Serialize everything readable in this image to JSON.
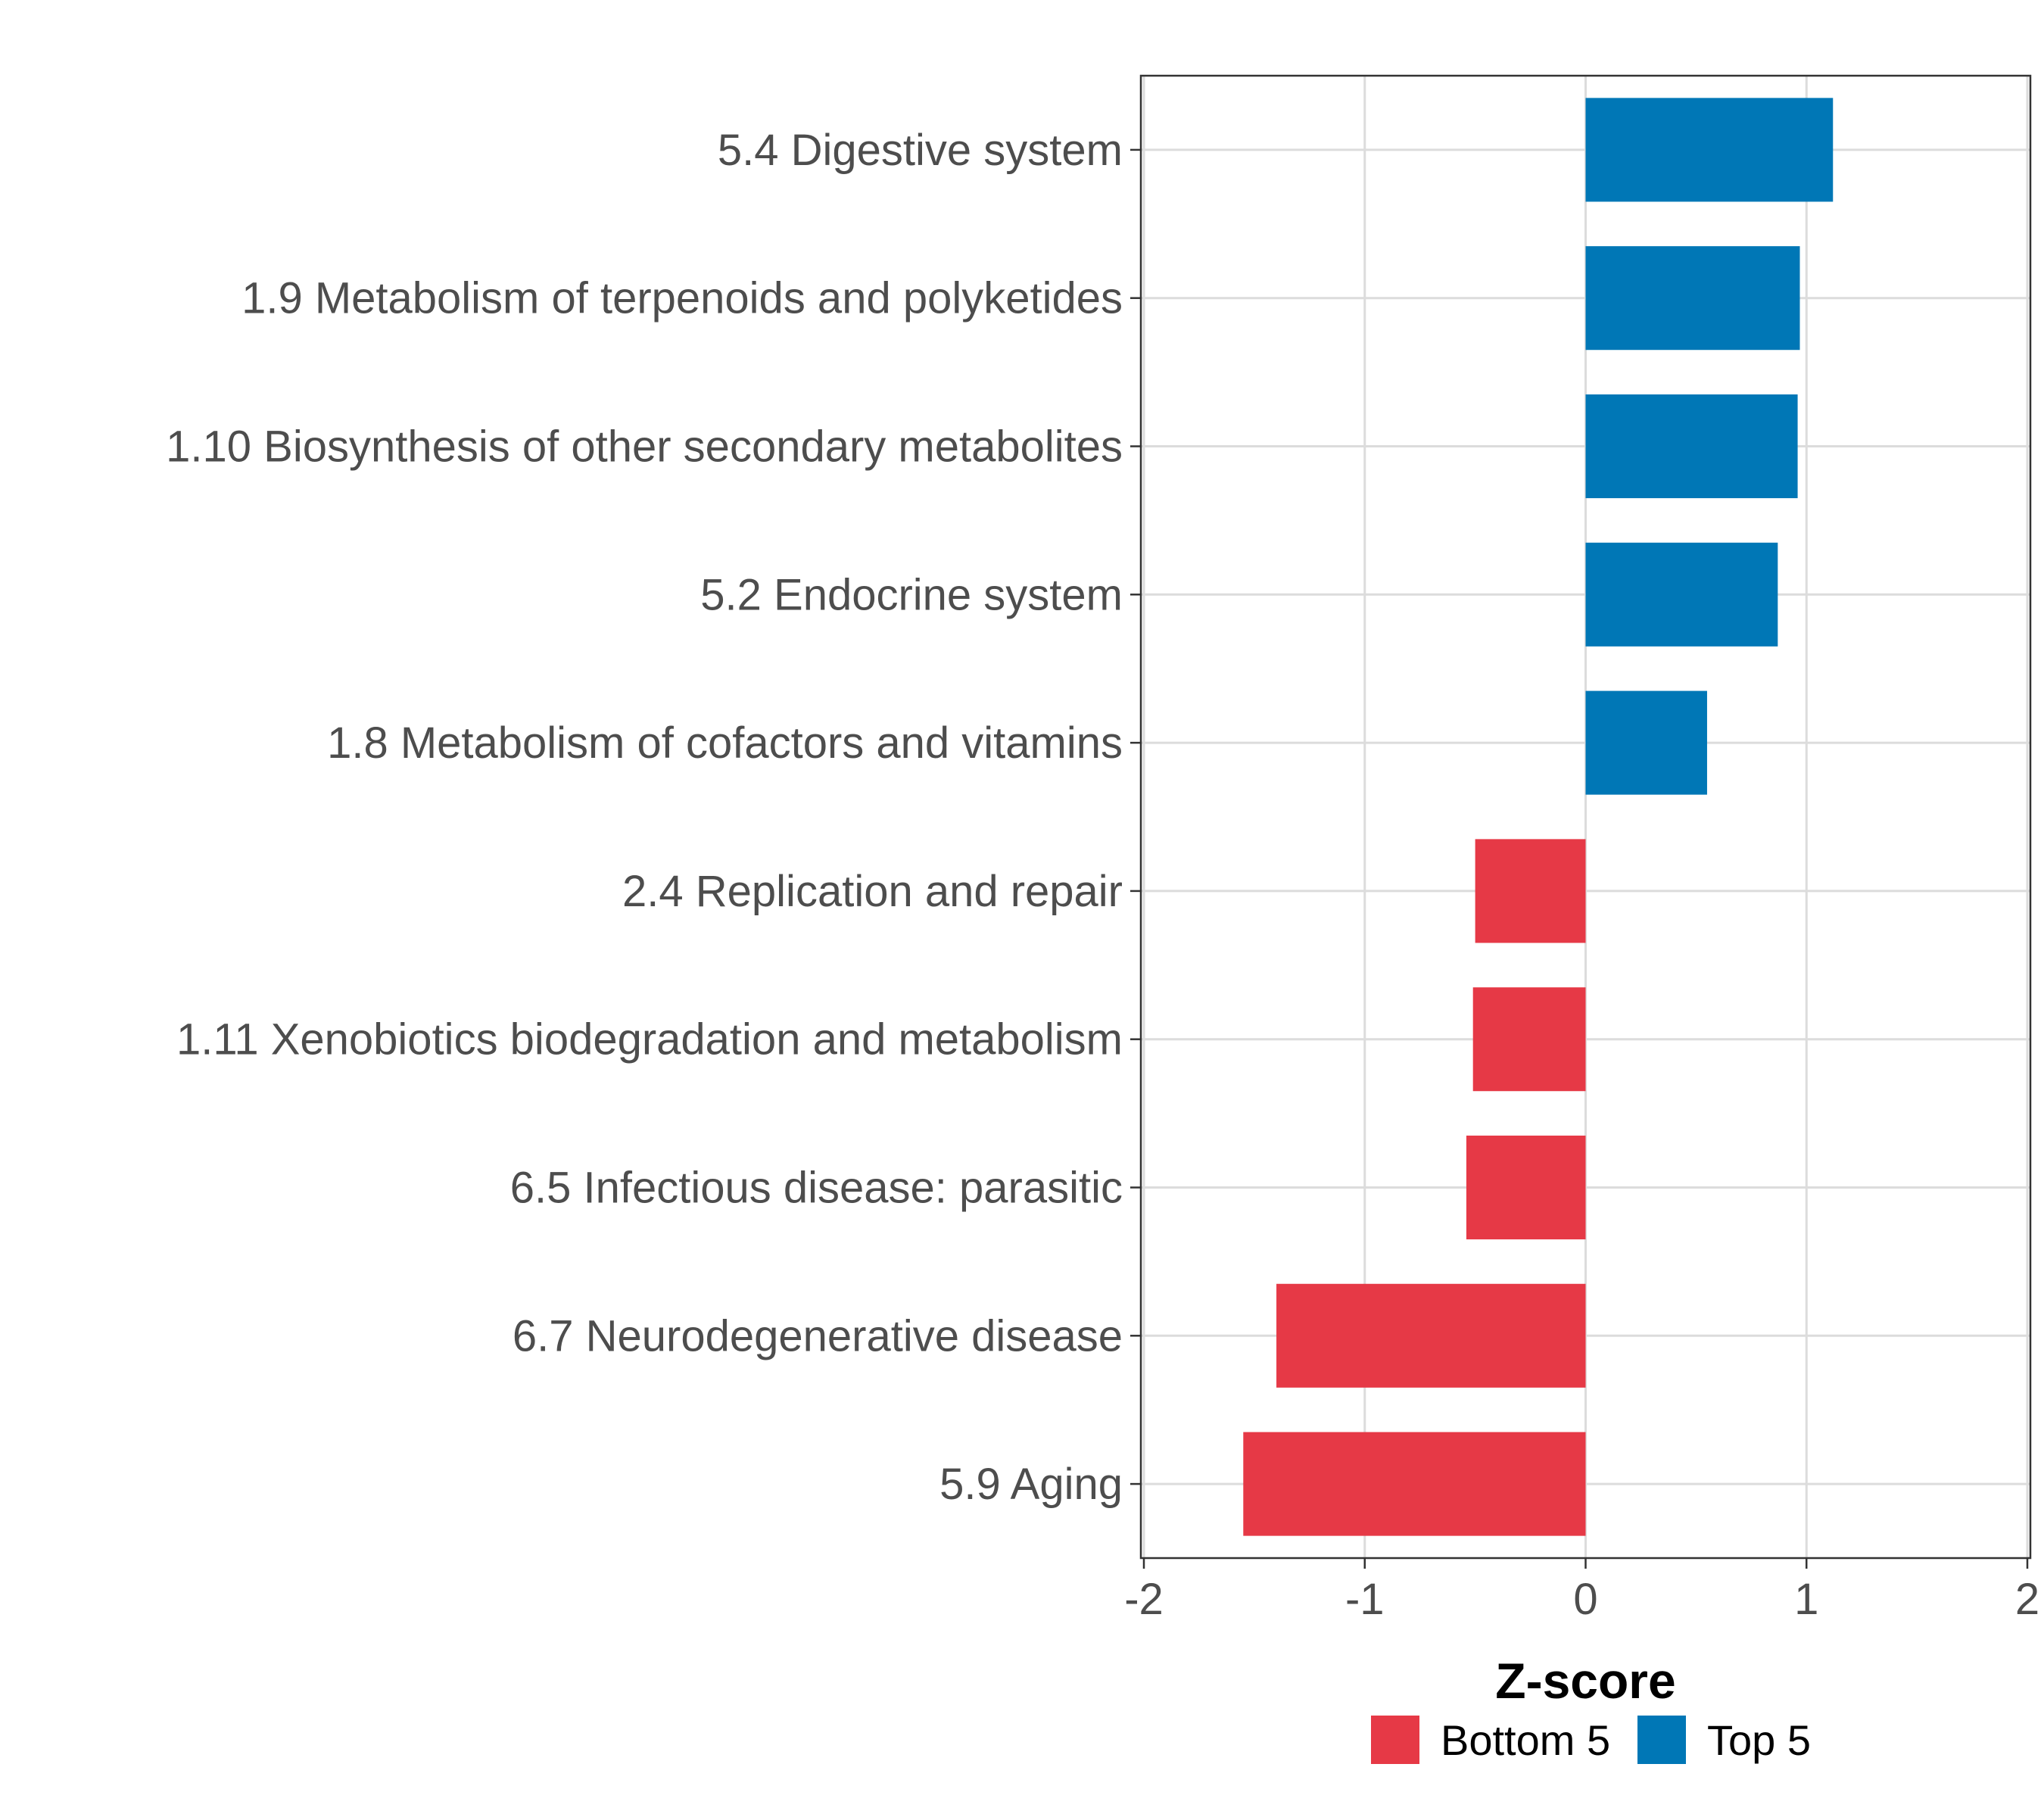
{
  "chart_data": {
    "type": "bar",
    "orientation": "horizontal",
    "categories": [
      "5.4 Digestive system",
      "1.9 Metabolism of terpenoids and polyketides",
      "1.10 Biosynthesis of other secondary metabolites",
      "5.2 Endocrine system",
      "1.8 Metabolism of cofactors and vitamins",
      "2.4 Replication and repair",
      "1.11 Xenobiotics biodegradation and metabolism",
      "6.5 Infectious disease: parasitic",
      "6.7 Neurodegenerative disease",
      "5.9 Aging"
    ],
    "values": [
      1.12,
      0.97,
      0.96,
      0.87,
      0.55,
      -0.5,
      -0.51,
      -0.54,
      -1.4,
      -1.55
    ],
    "groups": [
      "Top 5",
      "Top 5",
      "Top 5",
      "Top 5",
      "Top 5",
      "Bottom 5",
      "Bottom 5",
      "Bottom 5",
      "Bottom 5",
      "Bottom 5"
    ],
    "xlabel": "Z-score",
    "ylabel": "",
    "xlim": [
      -2,
      2
    ],
    "xticks": [
      "-2",
      "-1",
      "0",
      "1",
      "2"
    ],
    "grid": true,
    "legend": {
      "position": "bottom",
      "entries": [
        {
          "label": "Bottom 5",
          "color": "#e63946"
        },
        {
          "label": "Top 5",
          "color": "#0077b6"
        }
      ]
    }
  }
}
